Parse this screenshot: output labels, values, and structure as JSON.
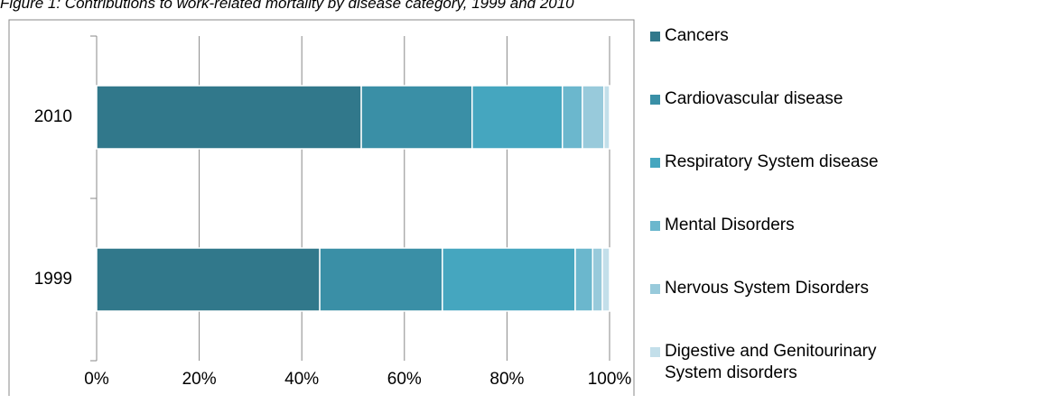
{
  "chart_data": {
    "type": "stacked-bar-horizontal",
    "title": "Figure 1: Contributions to work-related mortality by disease category, 1999 and 2010",
    "categories": [
      "1999",
      "2010"
    ],
    "series": [
      {
        "name": "Cancers",
        "color": "#31788b",
        "values": [
          43.5,
          51.6
        ]
      },
      {
        "name": "Cardiovascular disease",
        "color": "#3a8fa6",
        "values": [
          23.9,
          21.6
        ]
      },
      {
        "name": "Respiratory System disease",
        "color": "#45a6bf",
        "values": [
          25.9,
          17.6
        ]
      },
      {
        "name": "Mental Disorders",
        "color": "#6bb7cd",
        "values": [
          3.4,
          3.9
        ]
      },
      {
        "name": "Nervous System Disorders",
        "color": "#98cadb",
        "values": [
          1.9,
          4.2
        ]
      },
      {
        "name": "Digestive and Genitourinary System disorders",
        "color": "#c3dfea",
        "values": [
          1.4,
          1.1
        ]
      }
    ],
    "xlim": [
      0,
      100
    ],
    "xticks": [
      {
        "value": 0,
        "label": "0%"
      },
      {
        "value": 20,
        "label": "20%"
      },
      {
        "value": 40,
        "label": "40%"
      },
      {
        "value": 60,
        "label": "60%"
      },
      {
        "value": 80,
        "label": "80%"
      },
      {
        "value": 100,
        "label": "100%"
      }
    ],
    "grid": true
  }
}
